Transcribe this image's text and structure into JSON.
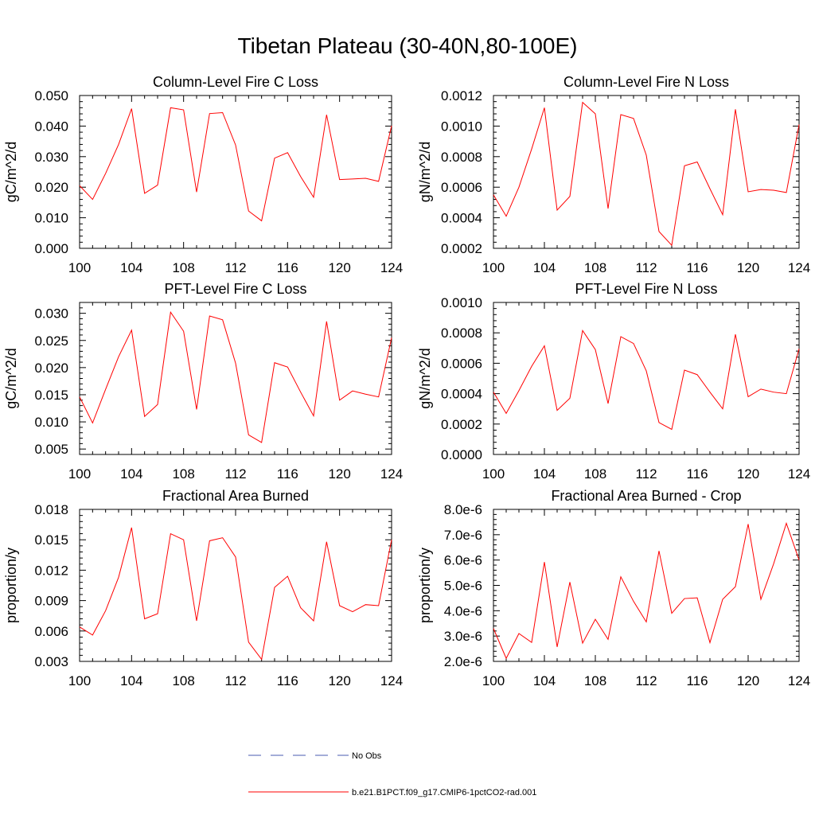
{
  "title": "Tibetan Plateau (30-40N,80-100E)",
  "colors": {
    "model": "#ff0000",
    "obs": "#4a5bb0",
    "axis": "#000000"
  },
  "legend": [
    {
      "label": "No Obs",
      "style": "dashed",
      "color": "#4a5bb0"
    },
    {
      "label": "b.e21.B1PCT.f09_g17.CMIP6-1pctCO2-rad.001",
      "style": "solid",
      "color": "#ff0000"
    }
  ],
  "chart_data": [
    {
      "type": "line",
      "title": "Column-Level Fire C Loss",
      "ylabel": "gC/m^2/d",
      "xlim": [
        100,
        124
      ],
      "ylim": [
        0.0,
        0.05
      ],
      "xticks": [
        "100",
        "104",
        "108",
        "112",
        "116",
        "120",
        "124"
      ],
      "yticks": [
        "0.000",
        "0.010",
        "0.020",
        "0.030",
        "0.040",
        "0.050"
      ],
      "x": [
        100,
        101,
        102,
        103,
        104,
        105,
        106,
        107,
        108,
        109,
        110,
        111,
        112,
        113,
        114,
        115,
        116,
        117,
        118,
        119,
        120,
        121,
        122,
        123,
        124
      ],
      "series": [
        {
          "values": [
            0.0205,
            0.016,
            0.0245,
            0.034,
            0.0457,
            0.018,
            0.0207,
            0.046,
            0.0453,
            0.0184,
            0.0441,
            0.0444,
            0.0338,
            0.0122,
            0.009,
            0.0295,
            0.0313,
            0.0235,
            0.0167,
            0.0437,
            0.0225,
            0.0227,
            0.0229,
            0.0219,
            0.0401
          ]
        }
      ]
    },
    {
      "type": "line",
      "title": "Column-Level Fire N Loss",
      "ylabel": "gN/m^2/d",
      "xlim": [
        100,
        124
      ],
      "ylim": [
        0.0002,
        0.0012
      ],
      "xticks": [
        "100",
        "104",
        "108",
        "112",
        "116",
        "120",
        "124"
      ],
      "yticks": [
        "0.0002",
        "0.0004",
        "0.0006",
        "0.0008",
        "0.0010",
        "0.0012"
      ],
      "x": [
        100,
        101,
        102,
        103,
        104,
        105,
        106,
        107,
        108,
        109,
        110,
        111,
        112,
        113,
        114,
        115,
        116,
        117,
        118,
        119,
        120,
        121,
        122,
        123,
        124
      ],
      "series": [
        {
          "values": [
            0.00055,
            0.00041,
            0.0006,
            0.00085,
            0.00112,
            0.00045,
            0.00054,
            0.001155,
            0.00108,
            0.00046,
            0.001075,
            0.00105,
            0.00081,
            0.00031,
            0.00022,
            0.00074,
            0.000765,
            0.00059,
            0.00042,
            0.00111,
            0.00057,
            0.000585,
            0.00058,
            0.000565,
            0.00101
          ]
        }
      ]
    },
    {
      "type": "line",
      "title": "PFT-Level Fire C Loss",
      "ylabel": "gC/m^2/d",
      "xlim": [
        100,
        124
      ],
      "ylim": [
        0.004,
        0.032
      ],
      "xticks": [
        "100",
        "104",
        "108",
        "112",
        "116",
        "120",
        "124"
      ],
      "yticks": [
        "0.005",
        "0.010",
        "0.015",
        "0.020",
        "0.025",
        "0.030"
      ],
      "x": [
        100,
        101,
        102,
        103,
        104,
        105,
        106,
        107,
        108,
        109,
        110,
        111,
        112,
        113,
        114,
        115,
        116,
        117,
        118,
        119,
        120,
        121,
        122,
        123,
        124
      ],
      "series": [
        {
          "values": [
            0.0146,
            0.0098,
            0.016,
            0.022,
            0.0269,
            0.011,
            0.0132,
            0.0302,
            0.0267,
            0.0123,
            0.0295,
            0.0288,
            0.0208,
            0.0076,
            0.0062,
            0.0209,
            0.0201,
            0.0155,
            0.0111,
            0.0285,
            0.014,
            0.0157,
            0.0151,
            0.0146,
            0.0255
          ]
        }
      ]
    },
    {
      "type": "line",
      "title": "PFT-Level Fire N Loss",
      "ylabel": "gN/m^2/d",
      "xlim": [
        100,
        124
      ],
      "ylim": [
        0.0,
        0.001
      ],
      "xticks": [
        "100",
        "104",
        "108",
        "112",
        "116",
        "120",
        "124"
      ],
      "yticks": [
        "0.0000",
        "0.0002",
        "0.0004",
        "0.0006",
        "0.0008",
        "0.0010"
      ],
      "x": [
        100,
        101,
        102,
        103,
        104,
        105,
        106,
        107,
        108,
        109,
        110,
        111,
        112,
        113,
        114,
        115,
        116,
        117,
        118,
        119,
        120,
        121,
        122,
        123,
        124
      ],
      "series": [
        {
          "values": [
            0.00041,
            0.00027,
            0.00042,
            0.00058,
            0.000715,
            0.00029,
            0.00037,
            0.000815,
            0.00069,
            0.000335,
            0.000775,
            0.00073,
            0.00055,
            0.00021,
            0.000165,
            0.000555,
            0.000525,
            0.00041,
            0.0003,
            0.00079,
            0.00038,
            0.00043,
            0.00041,
            0.0004,
            0.000695
          ]
        }
      ]
    },
    {
      "type": "line",
      "title": "Fractional Area Burned",
      "ylabel": "proportion/y",
      "xlim": [
        100,
        124
      ],
      "ylim": [
        0.003,
        0.018
      ],
      "xticks": [
        "100",
        "104",
        "108",
        "112",
        "116",
        "120",
        "124"
      ],
      "yticks": [
        "0.003",
        "0.006",
        "0.009",
        "0.012",
        "0.015",
        "0.018"
      ],
      "x": [
        100,
        101,
        102,
        103,
        104,
        105,
        106,
        107,
        108,
        109,
        110,
        111,
        112,
        113,
        114,
        115,
        116,
        117,
        118,
        119,
        120,
        121,
        122,
        123,
        124
      ],
      "series": [
        {
          "values": [
            0.0064,
            0.0056,
            0.008,
            0.0113,
            0.0162,
            0.0072,
            0.0077,
            0.0156,
            0.015,
            0.007,
            0.0149,
            0.0152,
            0.0133,
            0.0049,
            0.0032,
            0.0103,
            0.0114,
            0.0083,
            0.007,
            0.0148,
            0.0085,
            0.0079,
            0.0086,
            0.0085,
            0.015
          ]
        }
      ]
    },
    {
      "type": "line",
      "title": "Fractional Area Burned - Crop",
      "ylabel": "proportion/y",
      "xlim": [
        100,
        124
      ],
      "ylim": [
        2e-06,
        8e-06
      ],
      "xticks": [
        "100",
        "104",
        "108",
        "112",
        "116",
        "120",
        "124"
      ],
      "yticks": [
        "2.0e-6",
        "3.0e-6",
        "4.0e-6",
        "5.0e-6",
        "6.0e-6",
        "7.0e-6",
        "8.0e-6"
      ],
      "x": [
        100,
        101,
        102,
        103,
        104,
        105,
        106,
        107,
        108,
        109,
        110,
        111,
        112,
        113,
        114,
        115,
        116,
        117,
        118,
        119,
        120,
        121,
        122,
        123,
        124
      ],
      "series": [
        {
          "values": [
            3.3e-06,
            2.12e-06,
            3.1e-06,
            2.75e-06,
            5.92e-06,
            2.57e-06,
            5.13e-06,
            2.72e-06,
            3.66e-06,
            2.87e-06,
            5.34e-06,
            4.37e-06,
            3.56e-06,
            6.36e-06,
            3.9e-06,
            4.48e-06,
            4.51e-06,
            2.74e-06,
            4.45e-06,
            4.95e-06,
            7.42e-06,
            4.45e-06,
            5.85e-06,
            7.45e-06,
            6e-06
          ]
        }
      ]
    }
  ]
}
